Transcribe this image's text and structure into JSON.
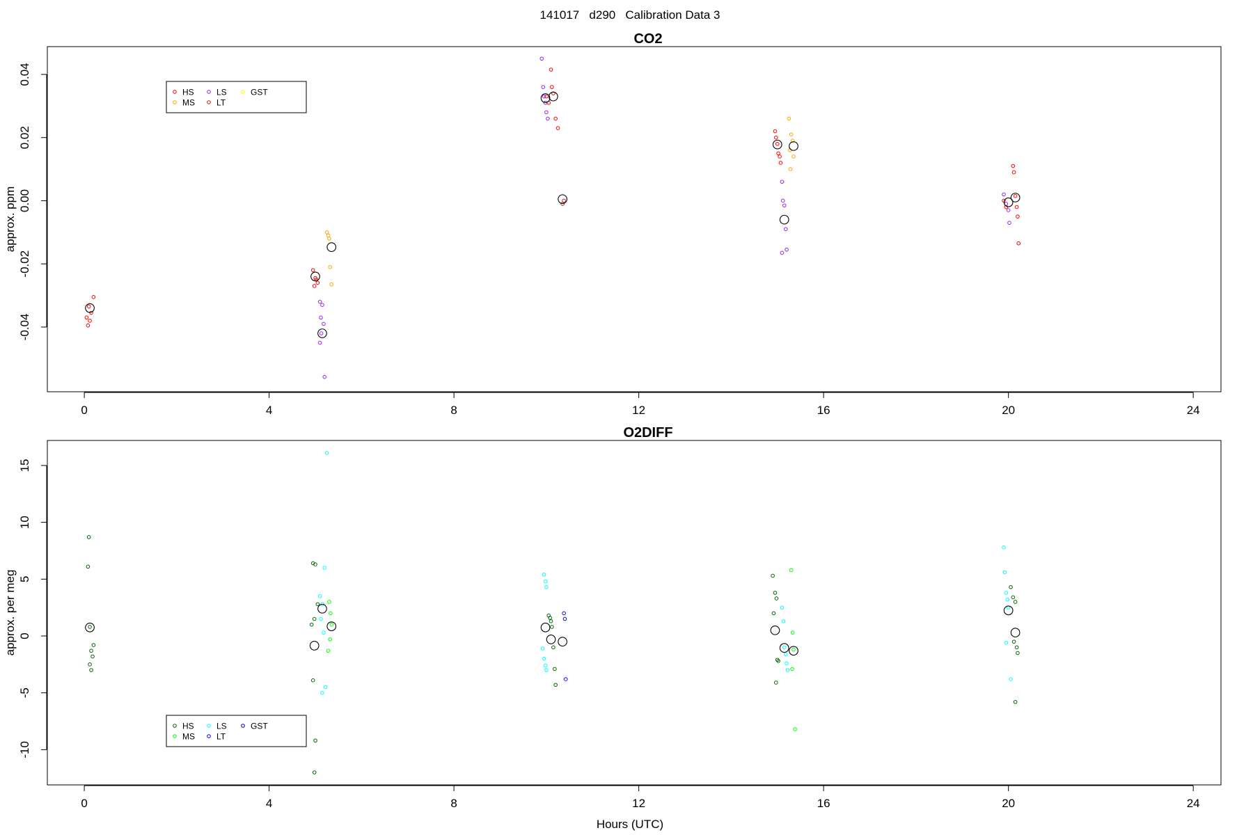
{
  "page_title": "141017   d290   Calibration Data 3",
  "colors": {
    "HS_co2": "#ff0000",
    "MS_co2": "#ffa500",
    "LS_co2": "#a020f0",
    "LT_co2": "#b22222",
    "GST_co2": "#ffff00",
    "HS_o2": "#006400",
    "MS_o2": "#00ff00",
    "LS_o2": "#00ffff",
    "LT_o2": "#0000ff",
    "GST_o2": "#00008b",
    "mean_marker": "#000000"
  },
  "chart_data": [
    {
      "type": "scatter",
      "title": "CO2",
      "xlabel": "",
      "ylabel": "approx. ppm",
      "xlim": [
        -0.8,
        24.6
      ],
      "ylim": [
        -0.0605,
        0.0488
      ],
      "xticks": [
        "0",
        "4",
        "8",
        "12",
        "16",
        "20",
        "24"
      ],
      "yticks": [
        "-0.04",
        "-0.02",
        "0.00",
        "0.02",
        "0.04"
      ],
      "legend_position": "top-left",
      "legend": [
        "HS",
        "MS",
        "LS",
        "LT",
        "GST"
      ],
      "series": [
        {
          "name": "HS",
          "color_key": "HS_co2",
          "points": [
            [
              0.1,
              -0.0335
            ],
            [
              0.15,
              -0.0355
            ],
            [
              0.05,
              -0.037
            ],
            [
              0.12,
              -0.038
            ],
            [
              0.2,
              -0.0305
            ],
            [
              0.08,
              -0.0395
            ],
            [
              4.95,
              -0.022
            ],
            [
              5.0,
              -0.0245
            ],
            [
              5.05,
              -0.026
            ],
            [
              4.98,
              -0.027
            ],
            [
              5.02,
              -0.025
            ],
            [
              10.0,
              0.033
            ],
            [
              10.05,
              0.031
            ],
            [
              10.1,
              0.0415
            ],
            [
              10.12,
              0.036
            ],
            [
              10.15,
              0.034
            ],
            [
              10.2,
              0.026
            ],
            [
              10.25,
              0.023
            ],
            [
              14.95,
              0.022
            ],
            [
              14.97,
              0.02
            ],
            [
              15.0,
              0.018
            ],
            [
              15.02,
              0.015
            ],
            [
              15.05,
              0.014
            ],
            [
              15.07,
              0.012
            ],
            [
              19.9,
              0.0
            ],
            [
              19.95,
              -0.002
            ],
            [
              20.1,
              0.011
            ],
            [
              20.12,
              0.009
            ],
            [
              20.15,
              0.0015
            ],
            [
              20.18,
              -0.002
            ],
            [
              20.2,
              -0.005
            ],
            [
              20.22,
              -0.0135
            ]
          ]
        },
        {
          "name": "MS",
          "color_key": "MS_co2",
          "points": [
            [
              5.25,
              -0.01
            ],
            [
              5.28,
              -0.011
            ],
            [
              5.3,
              -0.012
            ],
            [
              5.32,
              -0.021
            ],
            [
              5.35,
              -0.0265
            ],
            [
              15.25,
              0.026
            ],
            [
              15.3,
              0.021
            ],
            [
              15.33,
              0.019
            ],
            [
              15.27,
              0.016
            ],
            [
              15.35,
              0.014
            ],
            [
              15.28,
              0.01
            ]
          ]
        },
        {
          "name": "LS",
          "color_key": "LS_co2",
          "points": [
            [
              5.1,
              -0.032
            ],
            [
              5.15,
              -0.033
            ],
            [
              5.12,
              -0.037
            ],
            [
              5.18,
              -0.039
            ],
            [
              5.13,
              -0.042
            ],
            [
              5.1,
              -0.045
            ],
            [
              5.2,
              -0.0558
            ],
            [
              9.9,
              0.045
            ],
            [
              9.93,
              0.036
            ],
            [
              9.95,
              0.033
            ],
            [
              9.98,
              0.031
            ],
            [
              10.0,
              0.028
            ],
            [
              10.03,
              0.026
            ],
            [
              15.1,
              0.006
            ],
            [
              15.12,
              0.0
            ],
            [
              15.15,
              -0.0015
            ],
            [
              15.18,
              -0.009
            ],
            [
              15.2,
              -0.0155
            ],
            [
              15.1,
              -0.0165
            ],
            [
              19.9,
              0.002
            ],
            [
              19.95,
              -0.001
            ],
            [
              20.0,
              -0.003
            ],
            [
              20.02,
              -0.007
            ]
          ]
        },
        {
          "name": "LT",
          "color_key": "LT_co2",
          "points": [
            [
              10.35,
              -0.001
            ],
            [
              10.38,
              0.0
            ]
          ]
        },
        {
          "name": "GST",
          "color_key": "GST_co2",
          "points": []
        }
      ],
      "means": [
        [
          0.12,
          -0.034
        ],
        [
          5.0,
          -0.024
        ],
        [
          5.15,
          -0.042
        ],
        [
          5.35,
          -0.0147
        ],
        [
          9.98,
          0.0325
        ],
        [
          10.15,
          0.033
        ],
        [
          10.35,
          0.0005
        ],
        [
          15.0,
          0.0178
        ],
        [
          15.15,
          -0.006
        ],
        [
          15.35,
          0.0173
        ],
        [
          20.0,
          -0.0005
        ],
        [
          20.15,
          0.001
        ]
      ]
    },
    {
      "type": "scatter",
      "title": "O2DIFF",
      "xlabel": "Hours (UTC)",
      "ylabel": "approx. per meg",
      "xlim": [
        -0.8,
        24.6
      ],
      "ylim": [
        -13.1,
        17.2
      ],
      "xticks": [
        "0",
        "4",
        "8",
        "12",
        "16",
        "20",
        "24"
      ],
      "yticks": [
        "-10",
        "-5",
        "0",
        "5",
        "10",
        "15"
      ],
      "legend_position": "bottom-left",
      "legend": [
        "HS",
        "MS",
        "LS",
        "LT",
        "GST"
      ],
      "series": [
        {
          "name": "HS",
          "color_key": "HS_o2",
          "points": [
            [
              0.1,
              8.7
            ],
            [
              0.08,
              6.1
            ],
            [
              0.12,
              0.8
            ],
            [
              0.2,
              -0.8
            ],
            [
              0.15,
              -1.3
            ],
            [
              0.18,
              -1.8
            ],
            [
              0.12,
              -2.5
            ],
            [
              0.15,
              -3.0
            ],
            [
              4.95,
              6.4
            ],
            [
              5.0,
              6.3
            ],
            [
              5.05,
              2.8
            ],
            [
              4.98,
              1.5
            ],
            [
              4.92,
              1.0
            ],
            [
              4.95,
              -3.9
            ],
            [
              5.0,
              -9.2
            ],
            [
              4.98,
              -12.0
            ],
            [
              10.05,
              1.8
            ],
            [
              10.08,
              1.6
            ],
            [
              10.1,
              1.3
            ],
            [
              10.12,
              0.8
            ],
            [
              10.15,
              -1.0
            ],
            [
              10.18,
              -2.9
            ],
            [
              10.2,
              -4.3
            ],
            [
              14.9,
              5.3
            ],
            [
              14.95,
              3.8
            ],
            [
              14.98,
              3.3
            ],
            [
              14.92,
              2.0
            ],
            [
              15.0,
              -2.1
            ],
            [
              15.02,
              -2.2
            ],
            [
              14.97,
              -4.1
            ],
            [
              20.05,
              4.3
            ],
            [
              20.1,
              3.4
            ],
            [
              20.15,
              3.0
            ],
            [
              20.12,
              -0.5
            ],
            [
              20.18,
              -1.0
            ],
            [
              20.2,
              -1.5
            ],
            [
              20.15,
              -5.8
            ]
          ]
        },
        {
          "name": "MS",
          "color_key": "MS_o2",
          "points": [
            [
              5.3,
              3.0
            ],
            [
              5.33,
              2.0
            ],
            [
              5.35,
              1.0
            ],
            [
              5.32,
              -0.3
            ],
            [
              5.28,
              -1.3
            ],
            [
              15.3,
              5.8
            ],
            [
              15.33,
              0.3
            ],
            [
              15.35,
              -1.2
            ],
            [
              15.32,
              -2.9
            ],
            [
              15.38,
              -8.2
            ]
          ]
        },
        {
          "name": "LS",
          "color_key": "LS_o2",
          "points": [
            [
              5.1,
              3.5
            ],
            [
              5.15,
              2.8
            ],
            [
              5.12,
              1.5
            ],
            [
              5.18,
              0.3
            ],
            [
              5.2,
              6.0
            ],
            [
              5.22,
              -4.5
            ],
            [
              5.15,
              -5.0
            ],
            [
              5.25,
              16.1
            ],
            [
              9.95,
              5.4
            ],
            [
              9.98,
              4.8
            ],
            [
              10.0,
              4.3
            ],
            [
              9.92,
              -1.1
            ],
            [
              9.95,
              -2.0
            ],
            [
              9.98,
              -2.6
            ],
            [
              10.0,
              -3.0
            ],
            [
              15.1,
              2.5
            ],
            [
              15.13,
              1.3
            ],
            [
              15.15,
              -1.0
            ],
            [
              15.18,
              -1.6
            ],
            [
              15.2,
              -2.4
            ],
            [
              15.22,
              -3.0
            ],
            [
              19.9,
              7.8
            ],
            [
              19.92,
              5.6
            ],
            [
              19.95,
              3.8
            ],
            [
              19.98,
              3.2
            ],
            [
              20.0,
              2.5
            ],
            [
              19.95,
              -0.6
            ],
            [
              20.05,
              -3.8
            ]
          ]
        },
        {
          "name": "LT",
          "color_key": "LT_o2",
          "points": [
            [
              10.38,
              2.0
            ],
            [
              10.4,
              1.5
            ],
            [
              10.42,
              -3.8
            ]
          ]
        },
        {
          "name": "GST",
          "color_key": "GST_o2",
          "points": []
        }
      ],
      "means": [
        [
          0.12,
          0.75
        ],
        [
          4.98,
          -0.85
        ],
        [
          5.15,
          2.4
        ],
        [
          5.35,
          0.85
        ],
        [
          9.98,
          0.75
        ],
        [
          10.1,
          -0.3
        ],
        [
          10.35,
          -0.5
        ],
        [
          14.95,
          0.5
        ],
        [
          15.15,
          -1.05
        ],
        [
          15.35,
          -1.3
        ],
        [
          20.0,
          2.25
        ],
        [
          20.15,
          0.3
        ]
      ]
    }
  ]
}
